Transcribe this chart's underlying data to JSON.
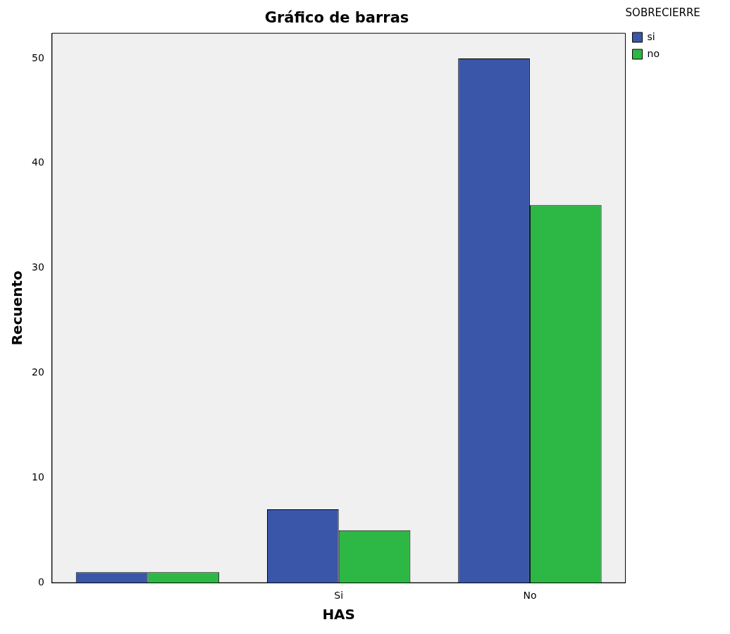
{
  "chart_data": {
    "type": "bar",
    "title": "Gráfico de barras",
    "xlabel": "HAS",
    "ylabel": "Recuento",
    "legend_title": "SOBRECIERRE",
    "categories": [
      null,
      "Si",
      "No"
    ],
    "series": [
      {
        "name": "si",
        "color": "#3a56a8",
        "values": [
          1,
          7,
          50
        ]
      },
      {
        "name": "no",
        "color": "#2db744",
        "values": [
          1,
          5,
          36
        ]
      }
    ],
    "ylim": [
      0,
      52.4
    ],
    "yticks": [
      0,
      10,
      20,
      30,
      40,
      50
    ],
    "grid": false,
    "legend": "top right"
  }
}
